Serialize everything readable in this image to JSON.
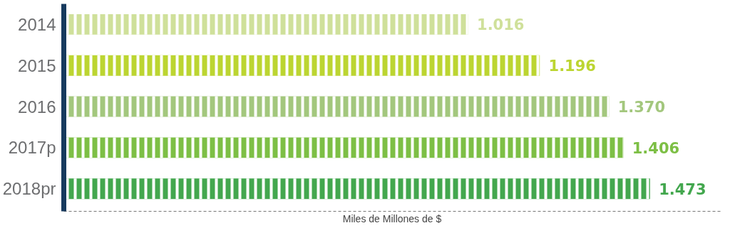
{
  "chart_data": {
    "type": "bar",
    "orientation": "horizontal",
    "xlabel": "Miles de Millones de $",
    "categories": [
      "2014",
      "2015",
      "2016",
      "2017p",
      "2018pr"
    ],
    "values": [
      1.016,
      1.196,
      1.37,
      1.406,
      1.473
    ],
    "value_labels": [
      "1.016",
      "1.196",
      "1.370",
      "1.406",
      "1.473"
    ],
    "colors": [
      "#cfe09a",
      "#bcd531",
      "#a3c77d",
      "#7dbf45",
      "#43a74e"
    ],
    "grid": false
  }
}
